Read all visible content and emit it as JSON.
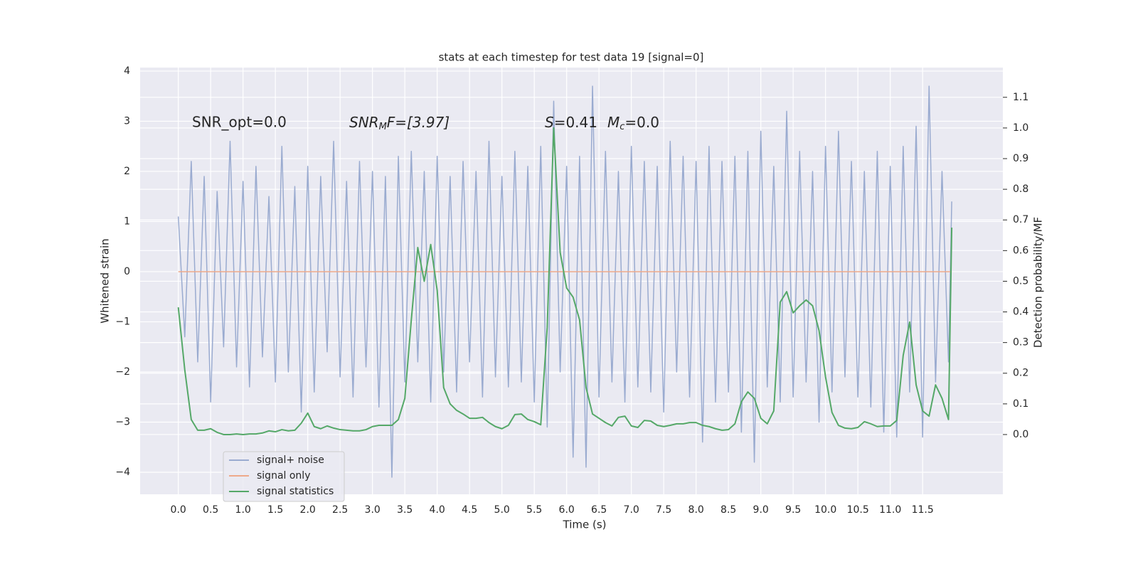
{
  "chart_data": {
    "type": "line",
    "title": "stats at each timestep for test data 19 [signal=0]",
    "xlabel": "Time (s)",
    "ylabel": "Whitened strain",
    "y2label": "Detection probability/MF",
    "annotations": [
      "SNR_opt=0.0",
      [
        "SNR",
        "M",
        "F=[3.97]"
      ],
      [
        "S",
        "=0.41",
        "M",
        "c",
        "=0.0"
      ]
    ],
    "x": [
      0,
      0.1,
      0.2,
      0.3,
      0.4,
      0.5,
      0.6,
      0.7,
      0.8,
      0.9,
      1.0,
      1.1,
      1.2,
      1.3,
      1.4,
      1.5,
      1.6,
      1.7,
      1.8,
      1.9,
      2.0,
      2.1,
      2.2,
      2.3,
      2.4,
      2.5,
      2.6,
      2.7,
      2.8,
      2.9,
      3.0,
      3.1,
      3.2,
      3.3,
      3.4,
      3.5,
      3.6,
      3.7,
      3.8,
      3.9,
      4.0,
      4.1,
      4.2,
      4.3,
      4.4,
      4.5,
      4.6,
      4.7,
      4.8,
      4.9,
      5.0,
      5.1,
      5.2,
      5.3,
      5.4,
      5.5,
      5.6,
      5.7,
      5.8,
      5.9,
      6.0,
      6.1,
      6.2,
      6.3,
      6.4,
      6.5,
      6.6,
      6.7,
      6.8,
      6.9,
      7.0,
      7.1,
      7.2,
      7.3,
      7.4,
      7.5,
      7.6,
      7.7,
      7.8,
      7.9,
      8.0,
      8.1,
      8.2,
      8.3,
      8.4,
      8.5,
      8.6,
      8.7,
      8.8,
      8.9,
      9.0,
      9.1,
      9.2,
      9.3,
      9.4,
      9.5,
      9.6,
      9.7,
      9.8,
      9.9,
      10.0,
      10.1,
      10.2,
      10.3,
      10.4,
      10.5,
      10.6,
      10.7,
      10.8,
      10.9,
      11.0,
      11.1,
      11.2,
      11.3,
      11.4,
      11.5,
      11.6,
      11.7,
      11.8,
      11.9,
      11.95
    ],
    "series": [
      {
        "name": "signal+ noise",
        "color": "#9aabd0",
        "values": [
          1.1,
          -1.3,
          2.2,
          -1.8,
          1.9,
          -2.6,
          1.6,
          -1.5,
          2.6,
          -1.9,
          1.8,
          -2.3,
          2.1,
          -1.7,
          1.5,
          -2.2,
          2.5,
          -2.0,
          1.7,
          -2.8,
          2.1,
          -2.4,
          1.9,
          -1.6,
          2.6,
          -2.1,
          1.8,
          -2.5,
          2.2,
          -1.9,
          2.0,
          -2.7,
          1.9,
          -4.1,
          2.3,
          -2.2,
          2.4,
          -1.8,
          2.0,
          -2.6,
          2.3,
          -2.0,
          1.9,
          -2.4,
          2.2,
          -1.8,
          2.0,
          -2.5,
          2.6,
          -2.1,
          1.9,
          -2.3,
          2.4,
          -2.2,
          2.1,
          -2.6,
          2.5,
          -3.1,
          3.4,
          -2.0,
          2.1,
          -3.7,
          2.3,
          -3.9,
          3.7,
          -2.5,
          2.4,
          -2.2,
          2.0,
          -2.6,
          2.5,
          -2.3,
          2.2,
          -2.4,
          2.1,
          -2.8,
          2.6,
          -2.0,
          2.3,
          -2.5,
          2.2,
          -3.4,
          2.5,
          -2.6,
          2.2,
          -2.4,
          2.3,
          -3.2,
          2.4,
          -3.8,
          2.8,
          -2.3,
          2.1,
          -2.6,
          3.2,
          -2.5,
          2.4,
          -2.2,
          2.0,
          -3.0,
          2.5,
          -2.4,
          2.8,
          -2.1,
          2.2,
          -2.5,
          2.0,
          -2.7,
          2.4,
          -3.2,
          2.1,
          -3.3,
          2.5,
          -2.4,
          2.9,
          -3.3,
          3.7,
          -2.2,
          2.0,
          -1.8,
          1.4
        ]
      },
      {
        "name": "signal only",
        "color": "#eea98a",
        "values": [
          0,
          0,
          0,
          0,
          0,
          0,
          0,
          0,
          0,
          0,
          0,
          0,
          0,
          0,
          0,
          0,
          0,
          0,
          0,
          0,
          0,
          0,
          0,
          0,
          0,
          0,
          0,
          0,
          0,
          0,
          0,
          0,
          0,
          0,
          0,
          0,
          0,
          0,
          0,
          0,
          0,
          0,
          0,
          0,
          0,
          0,
          0,
          0,
          0,
          0,
          0,
          0,
          0,
          0,
          0,
          0,
          0,
          0,
          0,
          0,
          0,
          0,
          0,
          0,
          0,
          0,
          0,
          0,
          0,
          0,
          0,
          0,
          0,
          0,
          0,
          0,
          0,
          0,
          0,
          0,
          0,
          0,
          0,
          0,
          0,
          0,
          0,
          0,
          0,
          0,
          0,
          0,
          0,
          0,
          0,
          0,
          0,
          0,
          0,
          0,
          0,
          0,
          0,
          0,
          0,
          0,
          0,
          0,
          0,
          0,
          0,
          0,
          0,
          0,
          0,
          0,
          0,
          0,
          0,
          0,
          0
        ]
      },
      {
        "name": "signal statistics",
        "color": "#55a868",
        "axis": "y2",
        "values": [
          0.415,
          0.211,
          0.049,
          0.014,
          0.014,
          0.019,
          0.007,
          0,
          0,
          0.002,
          0,
          0.002,
          0.002,
          0.005,
          0.012,
          0.009,
          0.016,
          0.012,
          0.014,
          0.037,
          0.07,
          0.026,
          0.019,
          0.028,
          0.021,
          0.016,
          0.014,
          0.012,
          0.012,
          0.016,
          0.026,
          0.03,
          0.03,
          0.03,
          0.049,
          0.118,
          0.374,
          0.61,
          0.5,
          0.62,
          0.47,
          0.153,
          0.1,
          0.079,
          0.067,
          0.053,
          0.053,
          0.056,
          0.039,
          0.026,
          0.019,
          0.03,
          0.065,
          0.067,
          0.049,
          0.042,
          0.032,
          0.35,
          1.0,
          0.594,
          0.478,
          0.448,
          0.374,
          0.153,
          0.067,
          0.053,
          0.039,
          0.028,
          0.056,
          0.06,
          0.028,
          0.023,
          0.046,
          0.044,
          0.03,
          0.026,
          0.03,
          0.035,
          0.035,
          0.039,
          0.039,
          0.03,
          0.026,
          0.019,
          0.014,
          0.016,
          0.035,
          0.107,
          0.139,
          0.118,
          0.053,
          0.035,
          0.077,
          0.432,
          0.466,
          0.397,
          0.42,
          0.439,
          0.42,
          0.339,
          0.188,
          0.072,
          0.03,
          0.021,
          0.019,
          0.023,
          0.042,
          0.035,
          0.026,
          0.028,
          0.028,
          0.046,
          0.258,
          0.367,
          0.162,
          0.077,
          0.06,
          0.162,
          0.118,
          0.049,
          0.675
        ]
      }
    ],
    "xlim": [
      -0.59,
      12.74
    ],
    "xticks": [
      {
        "value": 0,
        "label": "0.0"
      },
      {
        "value": 0.5,
        "label": "0.5"
      },
      {
        "value": 1,
        "label": "1.0"
      },
      {
        "value": 1.5,
        "label": "1.5"
      },
      {
        "value": 2,
        "label": "2.0"
      },
      {
        "value": 2.5,
        "label": "2.5"
      },
      {
        "value": 3,
        "label": "3.0"
      },
      {
        "value": 3.5,
        "label": "3.5"
      },
      {
        "value": 4,
        "label": "4.0"
      },
      {
        "value": 4.5,
        "label": "4.5"
      },
      {
        "value": 5,
        "label": "5.0"
      },
      {
        "value": 5.5,
        "label": "5.5"
      },
      {
        "value": 6,
        "label": "6.0"
      },
      {
        "value": 6.5,
        "label": "6.5"
      },
      {
        "value": 7,
        "label": "7.0"
      },
      {
        "value": 7.5,
        "label": "7.5"
      },
      {
        "value": 8,
        "label": "8.0"
      },
      {
        "value": 8.5,
        "label": "8.5"
      },
      {
        "value": 9,
        "label": "9.0"
      },
      {
        "value": 9.5,
        "label": "9.5"
      },
      {
        "value": 10,
        "label": "10.0"
      },
      {
        "value": 10.5,
        "label": "10.5"
      },
      {
        "value": 11,
        "label": "11.0"
      },
      {
        "value": 11.5,
        "label": "11.5"
      }
    ],
    "ylim": [
      -4.44,
      4.07
    ],
    "yticks": [
      {
        "value": -4,
        "label": "−4"
      },
      {
        "value": -3,
        "label": "−3"
      },
      {
        "value": -2,
        "label": "−2"
      },
      {
        "value": -1,
        "label": "−1"
      },
      0,
      1,
      2,
      3,
      4
    ],
    "y2lim": [
      -0.195,
      1.197
    ],
    "y2ticks": [
      {
        "value": 0,
        "label": "0.0"
      },
      {
        "value": 0.1,
        "label": "0.1"
      },
      {
        "value": 0.2,
        "label": "0.2"
      },
      {
        "value": 0.3,
        "label": "0.3"
      },
      {
        "value": 0.4,
        "label": "0.4"
      },
      {
        "value": 0.5,
        "label": "0.5"
      },
      {
        "value": 0.6,
        "label": "0.6"
      },
      {
        "value": 0.7,
        "label": "0.7"
      },
      {
        "value": 0.8,
        "label": "0.8"
      },
      {
        "value": 0.9,
        "label": "0.9"
      },
      {
        "value": 1.0,
        "label": "1.0"
      },
      {
        "value": 1.1,
        "label": "1.1"
      }
    ],
    "grid": true,
    "legend": "lower left"
  }
}
